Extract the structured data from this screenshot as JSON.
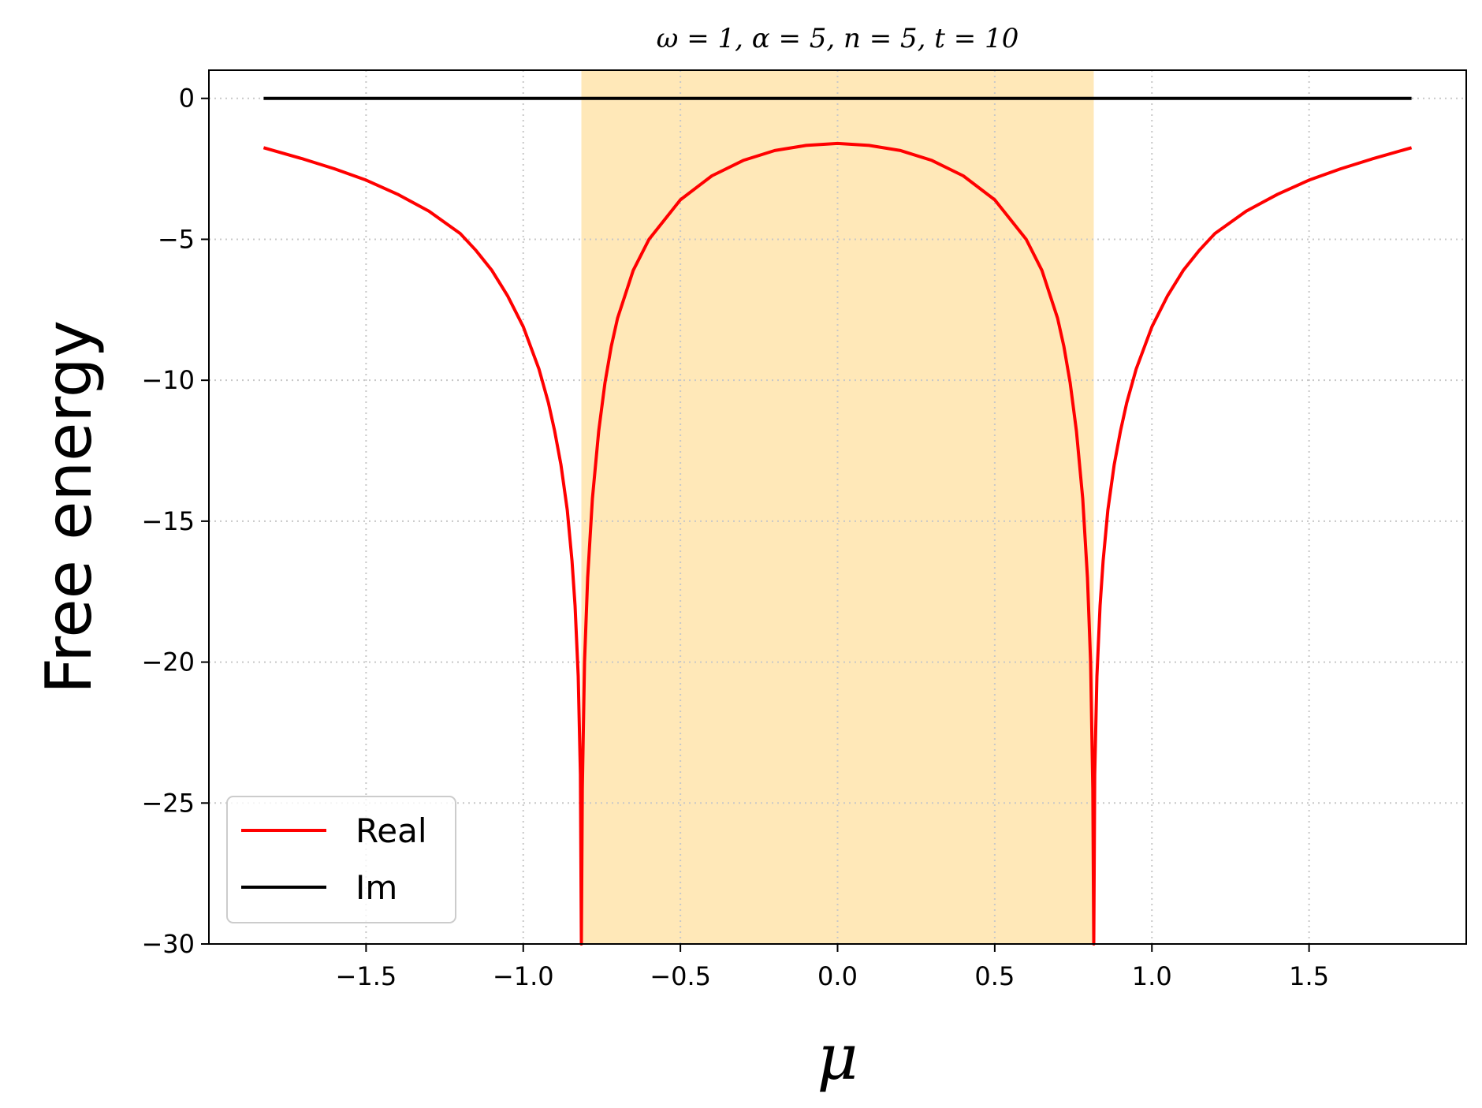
{
  "chart_data": {
    "type": "line",
    "title": "ω = 1, α = 5, n = 5, t = 10",
    "xlabel": "μ",
    "ylabel": "Free energy",
    "xlim": [
      -2.0,
      2.0
    ],
    "ylim": [
      -30,
      1
    ],
    "xticks": [
      -1.5,
      -1.0,
      -0.5,
      0.0,
      0.5,
      1.0,
      1.5
    ],
    "xtick_labels": [
      "−1.5",
      "−1.0",
      "−0.5",
      "0.0",
      "0.5",
      "1.0",
      "1.5"
    ],
    "yticks": [
      0,
      -5,
      -10,
      -15,
      -20,
      -25,
      -30
    ],
    "ytick_labels": [
      "0",
      "−5",
      "−10",
      "−15",
      "−20",
      "−25",
      "−30"
    ],
    "grid": true,
    "legend_position": "lower-left",
    "shaded_region": {
      "x_start": -0.815,
      "x_end": 0.815,
      "color": "#ffe8b8"
    },
    "series": [
      {
        "name": "Real",
        "color": "#ff0000",
        "x": [
          -1.826,
          -1.7,
          -1.6,
          -1.5,
          -1.4,
          -1.3,
          -1.2,
          -1.15,
          -1.1,
          -1.05,
          -1.0,
          -0.95,
          -0.92,
          -0.9,
          -0.88,
          -0.86,
          -0.845,
          -0.835,
          -0.825,
          -0.818,
          -0.815,
          -0.812,
          -0.805,
          -0.795,
          -0.78,
          -0.76,
          -0.74,
          -0.72,
          -0.7,
          -0.65,
          -0.6,
          -0.5,
          -0.4,
          -0.3,
          -0.2,
          -0.1,
          0.0,
          0.1,
          0.2,
          0.3,
          0.4,
          0.5,
          0.6,
          0.65,
          0.7,
          0.72,
          0.74,
          0.76,
          0.78,
          0.795,
          0.805,
          0.812,
          0.815,
          0.818,
          0.825,
          0.835,
          0.845,
          0.86,
          0.88,
          0.9,
          0.92,
          0.95,
          1.0,
          1.05,
          1.1,
          1.15,
          1.2,
          1.3,
          1.4,
          1.5,
          1.6,
          1.7,
          1.826
        ],
        "y": [
          -1.75,
          -2.15,
          -2.5,
          -2.9,
          -3.4,
          -4.0,
          -4.8,
          -5.4,
          -6.1,
          -7.0,
          -8.1,
          -9.6,
          -10.8,
          -11.8,
          -13.0,
          -14.6,
          -16.4,
          -18.0,
          -20.5,
          -24.0,
          -30.0,
          -24.5,
          -20.0,
          -17.0,
          -14.2,
          -11.8,
          -10.1,
          -8.8,
          -7.8,
          -6.1,
          -5.0,
          -3.6,
          -2.75,
          -2.2,
          -1.85,
          -1.67,
          -1.6,
          -1.67,
          -1.85,
          -2.2,
          -2.75,
          -3.6,
          -5.0,
          -6.1,
          -7.8,
          -8.8,
          -10.1,
          -11.8,
          -14.2,
          -17.0,
          -20.0,
          -24.5,
          -30.0,
          -24.0,
          -20.5,
          -18.0,
          -16.4,
          -14.6,
          -13.0,
          -11.8,
          -10.8,
          -9.6,
          -8.1,
          -7.0,
          -6.1,
          -5.4,
          -4.8,
          -4.0,
          -3.4,
          -2.9,
          -2.5,
          -2.15,
          -1.75
        ]
      },
      {
        "name": "Im",
        "color": "#000000",
        "x": [
          -1.826,
          1.826
        ],
        "y": [
          0,
          0
        ]
      }
    ]
  }
}
